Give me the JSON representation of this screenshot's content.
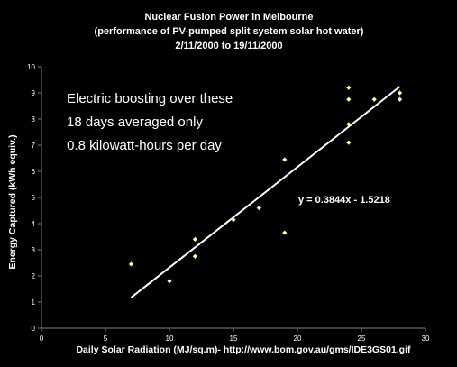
{
  "chart_data": {
    "type": "scatter",
    "title_lines": [
      "Nuclear Fusion Power in Melbourne",
      "(performance of PV-pumped  split system solar hot water)",
      "2/11/2000  to 19/11/2000"
    ],
    "xlabel": "Daily Solar Radiation (MJ/sq.m)- http://www.bom.gov.au/gms/IDE3GS01.gif",
    "ylabel": "Energy Captured (kWh equiv.)",
    "xlim": [
      0,
      30
    ],
    "ylim": [
      0,
      10
    ],
    "x_ticks": [
      "0",
      "5",
      "10",
      "15",
      "20",
      "25",
      "30"
    ],
    "y_ticks": [
      "0",
      "1",
      "2",
      "3",
      "4",
      "5",
      "6",
      "7",
      "8",
      "9",
      "10"
    ],
    "grid": false,
    "legend": "none",
    "points": [
      {
        "x": 7,
        "y": 2.45
      },
      {
        "x": 10,
        "y": 1.8
      },
      {
        "x": 12,
        "y": 3.4
      },
      {
        "x": 12,
        "y": 2.75
      },
      {
        "x": 15,
        "y": 4.15
      },
      {
        "x": 17,
        "y": 4.6
      },
      {
        "x": 19,
        "y": 6.45
      },
      {
        "x": 19,
        "y": 3.65
      },
      {
        "x": 24,
        "y": 9.2
      },
      {
        "x": 24,
        "y": 8.75
      },
      {
        "x": 24,
        "y": 7.8
      },
      {
        "x": 24,
        "y": 7.1
      },
      {
        "x": 26,
        "y": 8.75
      },
      {
        "x": 28,
        "y": 9.0
      },
      {
        "x": 28,
        "y": 8.75
      }
    ],
    "trendline": {
      "slope": 0.3844,
      "intercept": -1.5218,
      "x_start": 7,
      "x_end": 28,
      "equation_label": "y = 0.3844x - 1.5218"
    },
    "annotation_lines": [
      "Electric boosting over these",
      "18 days averaged only",
      " 0.8 kilowatt-hours per day"
    ],
    "colors": {
      "background": "#000000",
      "axis": "#808080",
      "text": "#ffffff",
      "marker": "#ffff80",
      "trendline": "#ffffff"
    }
  }
}
